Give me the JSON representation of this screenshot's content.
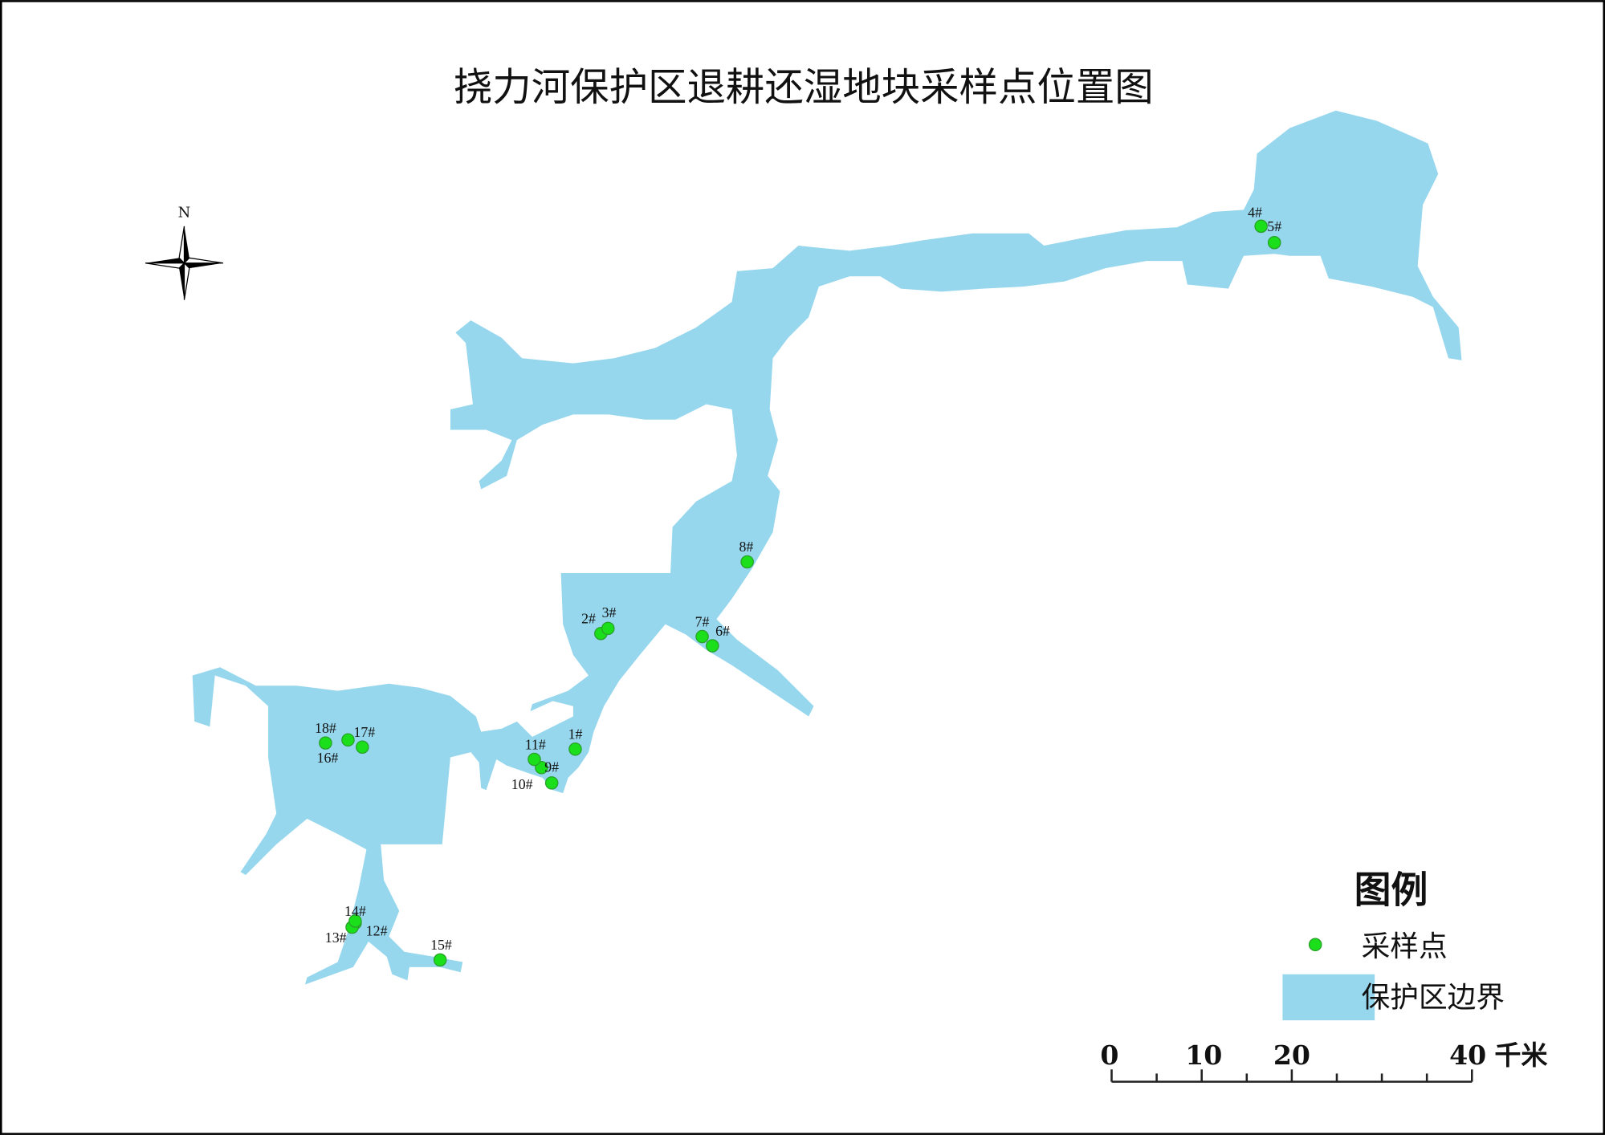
{
  "title": "挠力河保护区退耕还湿地块采样点位置图",
  "north_arrow": {
    "label": "N",
    "icon": "north-arrow-compass-icon"
  },
  "colors": {
    "reserve_fill": "#97d7ee",
    "sample_point": "#1adf1a",
    "sample_point_stroke": "#2aa02a",
    "frame": "#000000"
  },
  "sample_points": [
    "1#",
    "2#",
    "3#",
    "4#",
    "5#",
    "6#",
    "7#",
    "8#",
    "9#",
    "10#",
    "11#",
    "12#",
    "13#",
    "14#",
    "15#",
    "16#",
    "17#",
    "18#"
  ],
  "legend": {
    "title": "图例",
    "items": [
      {
        "label": "采样点",
        "symbol": "green-dot"
      },
      {
        "label": "保护区边界",
        "symbol": "light-blue-patch"
      }
    ]
  },
  "scale_bar": {
    "ticks": [
      "0",
      "10",
      "20",
      "40"
    ],
    "unit": "千米"
  }
}
